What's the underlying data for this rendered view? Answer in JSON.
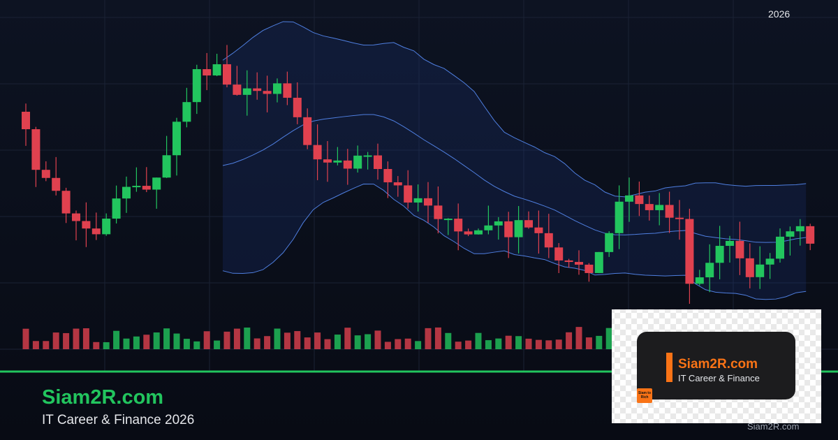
{
  "header": {
    "year": "2026"
  },
  "brand": {
    "title": "Siam2R.com",
    "subtitle": "IT Career & Finance 2026"
  },
  "logo": {
    "title": "Siam2R.com",
    "subtitle": "IT Career & Finance",
    "badge": "Siam to Rich"
  },
  "watermark": "Siam2R.com"
}
